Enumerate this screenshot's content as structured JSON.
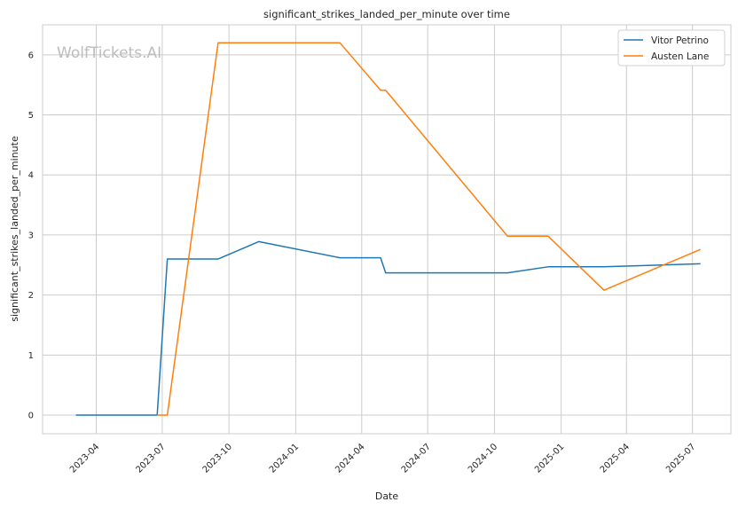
{
  "watermark": "WolfTickets.AI",
  "chart_data": {
    "type": "line",
    "title": "significant_strikes_landed_per_minute over time",
    "xlabel": "Date",
    "ylabel": "significant_strikes_landed_per_minute",
    "x_tick_labels": [
      "2023-04",
      "2023-07",
      "2023-10",
      "2024-01",
      "2024-04",
      "2024-07",
      "2024-10",
      "2025-01",
      "2025-04",
      "2025-07"
    ],
    "y_ticks": [
      0,
      1,
      2,
      3,
      4,
      5,
      6
    ],
    "xlim": [
      "2023-01-17",
      "2025-08-23"
    ],
    "ylim": [
      -0.31,
      6.5
    ],
    "grid": true,
    "legend_position": "top-right",
    "series": [
      {
        "name": "Vitor Petrino",
        "color": "#1f77b4",
        "points": [
          {
            "x": "2023-03-04",
            "y": 0
          },
          {
            "x": "2023-06-24",
            "y": 0
          },
          {
            "x": "2023-07-08",
            "y": 2.6
          },
          {
            "x": "2023-09-16",
            "y": 2.6
          },
          {
            "x": "2023-11-11",
            "y": 2.89
          },
          {
            "x": "2024-03-02",
            "y": 2.62
          },
          {
            "x": "2024-04-27",
            "y": 2.62
          },
          {
            "x": "2024-05-04",
            "y": 2.37
          },
          {
            "x": "2024-10-19",
            "y": 2.37
          },
          {
            "x": "2024-12-14",
            "y": 2.47
          },
          {
            "x": "2025-03-01",
            "y": 2.47
          },
          {
            "x": "2025-07-12",
            "y": 2.52
          }
        ]
      },
      {
        "name": "Austen Lane",
        "color": "#ff7f0e",
        "points": [
          {
            "x": "2023-06-24",
            "y": 0
          },
          {
            "x": "2023-07-08",
            "y": 0
          },
          {
            "x": "2023-09-16",
            "y": 6.2
          },
          {
            "x": "2024-03-02",
            "y": 6.2
          },
          {
            "x": "2024-04-27",
            "y": 5.41
          },
          {
            "x": "2024-05-04",
            "y": 5.41
          },
          {
            "x": "2024-10-19",
            "y": 2.98
          },
          {
            "x": "2024-12-14",
            "y": 2.98
          },
          {
            "x": "2025-03-01",
            "y": 2.08
          },
          {
            "x": "2025-07-12",
            "y": 2.76
          }
        ]
      }
    ]
  }
}
